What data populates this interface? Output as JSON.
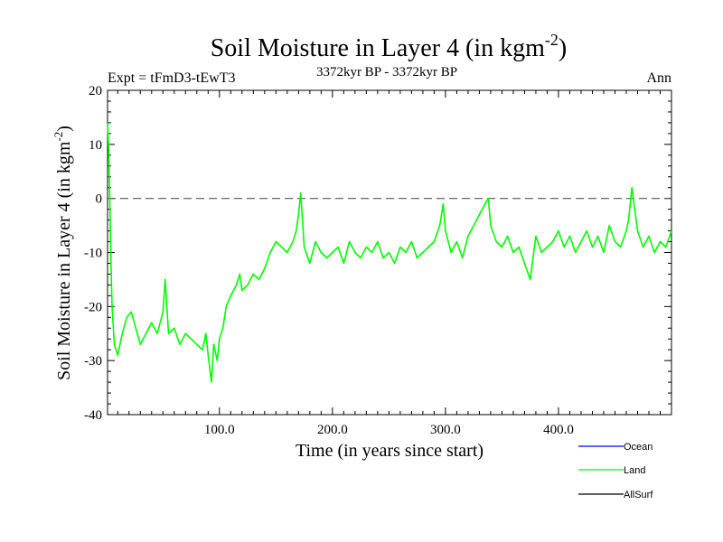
{
  "header": {
    "title_main": "Soil Moisture in Layer 4 (in kgm",
    "title_sup": "-2",
    "title_close": ")",
    "left_label": "Expt = tFmD3-tEwT3",
    "center_label": "3372kyr BP - 3372kyr BP",
    "right_label": "Ann"
  },
  "colors": {
    "ocean": "#0000ff",
    "land": "#00ff00",
    "allsurf": "#000000",
    "zero_line": "#555555"
  },
  "chart_data": {
    "type": "line",
    "title": "Soil Moisture in Layer 4 (in kgm-2)",
    "xlabel": "Time (in years since start)",
    "ylabel_main": "Soil Moisture in Layer 4 (in kgm",
    "ylabel_sup": "-2",
    "ylabel_close": ")",
    "xlim": [
      1,
      500
    ],
    "ylim": [
      -40,
      20
    ],
    "x_ticks": [
      {
        "value": 100,
        "label": "100.0"
      },
      {
        "value": 200,
        "label": "200.0"
      },
      {
        "value": 300,
        "label": "300.0"
      },
      {
        "value": 400,
        "label": "400.0"
      }
    ],
    "y_ticks": [
      {
        "value": 20,
        "label": "20"
      },
      {
        "value": 10,
        "label": "10"
      },
      {
        "value": 0,
        "label": "0"
      },
      {
        "value": -10,
        "label": "-10"
      },
      {
        "value": -20,
        "label": "-20"
      },
      {
        "value": -30,
        "label": "-30"
      },
      {
        "value": -40,
        "label": "-40"
      }
    ],
    "reference_line": {
      "y": 0,
      "style": "dashed"
    },
    "legend": {
      "placement": "bottom-right",
      "entries": [
        {
          "name": "Ocean",
          "color": "#0000ff"
        },
        {
          "name": "Land",
          "color": "#00ff00"
        },
        {
          "name": "AllSurf",
          "color": "#000000"
        }
      ]
    },
    "series": [
      {
        "name": "Land",
        "color": "#00ff00",
        "x": [
          1,
          2,
          3,
          4,
          5,
          7,
          10,
          14,
          18,
          22,
          26,
          30,
          35,
          40,
          45,
          50,
          52,
          55,
          60,
          65,
          70,
          75,
          80,
          85,
          88,
          90,
          93,
          95,
          98,
          100,
          103,
          106,
          110,
          115,
          118,
          120,
          125,
          130,
          135,
          140,
          145,
          150,
          155,
          160,
          165,
          168,
          170,
          172,
          175,
          180,
          185,
          190,
          195,
          200,
          205,
          210,
          215,
          220,
          225,
          230,
          235,
          240,
          245,
          250,
          255,
          260,
          265,
          270,
          275,
          280,
          285,
          290,
          295,
          298,
          300,
          305,
          310,
          315,
          320,
          325,
          330,
          335,
          338,
          340,
          345,
          350,
          355,
          360,
          365,
          370,
          375,
          380,
          385,
          390,
          395,
          400,
          405,
          410,
          415,
          420,
          425,
          430,
          435,
          440,
          445,
          450,
          455,
          460,
          462,
          465,
          470,
          475,
          480,
          485,
          490,
          495,
          500
        ],
        "values": [
          14,
          9,
          0,
          -12,
          -20,
          -27,
          -29,
          -25,
          -22,
          -21,
          -24,
          -27,
          -25,
          -23,
          -25,
          -21,
          -15,
          -25,
          -24,
          -27,
          -25,
          -26,
          -27,
          -28,
          -25,
          -29,
          -34,
          -27,
          -30,
          -26,
          -24,
          -20,
          -18,
          -16,
          -14,
          -17,
          -16,
          -14,
          -15,
          -13,
          -10,
          -8,
          -9,
          -10,
          -8,
          -6,
          -3,
          1,
          -9,
          -12,
          -8,
          -10,
          -11,
          -10,
          -9,
          -12,
          -8,
          -10,
          -11,
          -9,
          -10,
          -8,
          -11,
          -10,
          -12,
          -9,
          -10,
          -8,
          -11,
          -10,
          -9,
          -8,
          -5,
          -1,
          -6,
          -10,
          -8,
          -11,
          -7,
          -5,
          -3,
          -1,
          0,
          -5,
          -8,
          -9,
          -7,
          -10,
          -9,
          -12,
          -15,
          -7,
          -10,
          -9,
          -8,
          -6,
          -9,
          -7,
          -10,
          -8,
          -6,
          -9,
          -7,
          -10,
          -5,
          -8,
          -9,
          -6,
          -4,
          2,
          -6,
          -9,
          -7,
          -10,
          -8,
          -9,
          -6
        ]
      }
    ]
  }
}
